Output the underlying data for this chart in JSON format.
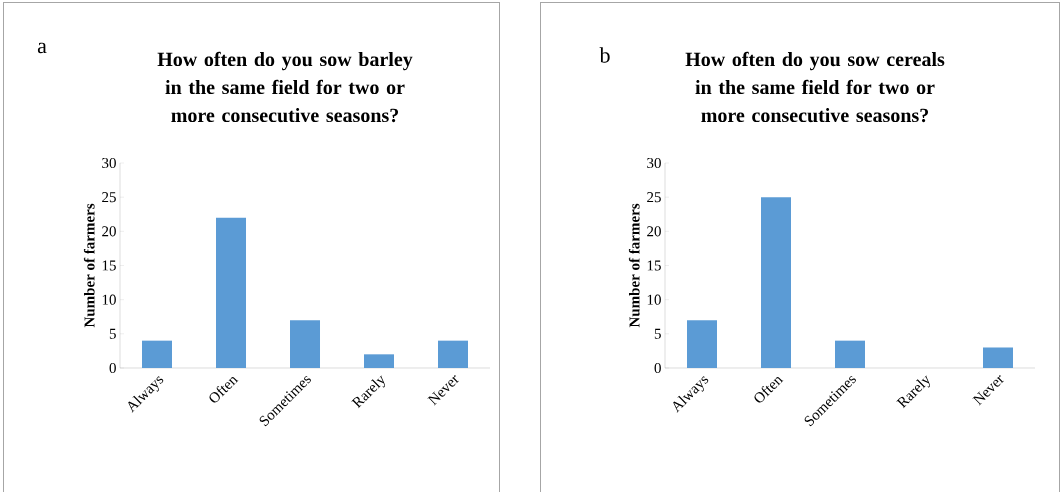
{
  "chart_data": [
    {
      "type": "bar",
      "title": "How often do you sow barley in the same field for two or more consecutive seasons?",
      "ylabel": "Number of farmers",
      "categories": [
        "Always",
        "Often",
        "Sometimes",
        "Rarely",
        "Never"
      ],
      "values": [
        4,
        22,
        7,
        2,
        4
      ],
      "color": "#5b9bd5",
      "ylim": [
        0,
        30
      ],
      "yticks": [
        0,
        5,
        10,
        15,
        20,
        25,
        30
      ],
      "annotations": [
        "a"
      ]
    },
    {
      "type": "bar",
      "title": "How often do you sow cereals in the same field for two or more consecutive seasons?",
      "ylabel": "Number of farmers",
      "categories": [
        "Always",
        "Often",
        "Sometimes",
        "Rarely",
        "Never"
      ],
      "values": [
        7,
        25,
        4,
        0,
        3
      ],
      "color": "#5b9bd5",
      "ylim": [
        0,
        30
      ],
      "yticks": [
        0,
        5,
        10,
        15,
        20,
        25,
        30
      ],
      "annotations": [
        "b"
      ]
    }
  ]
}
